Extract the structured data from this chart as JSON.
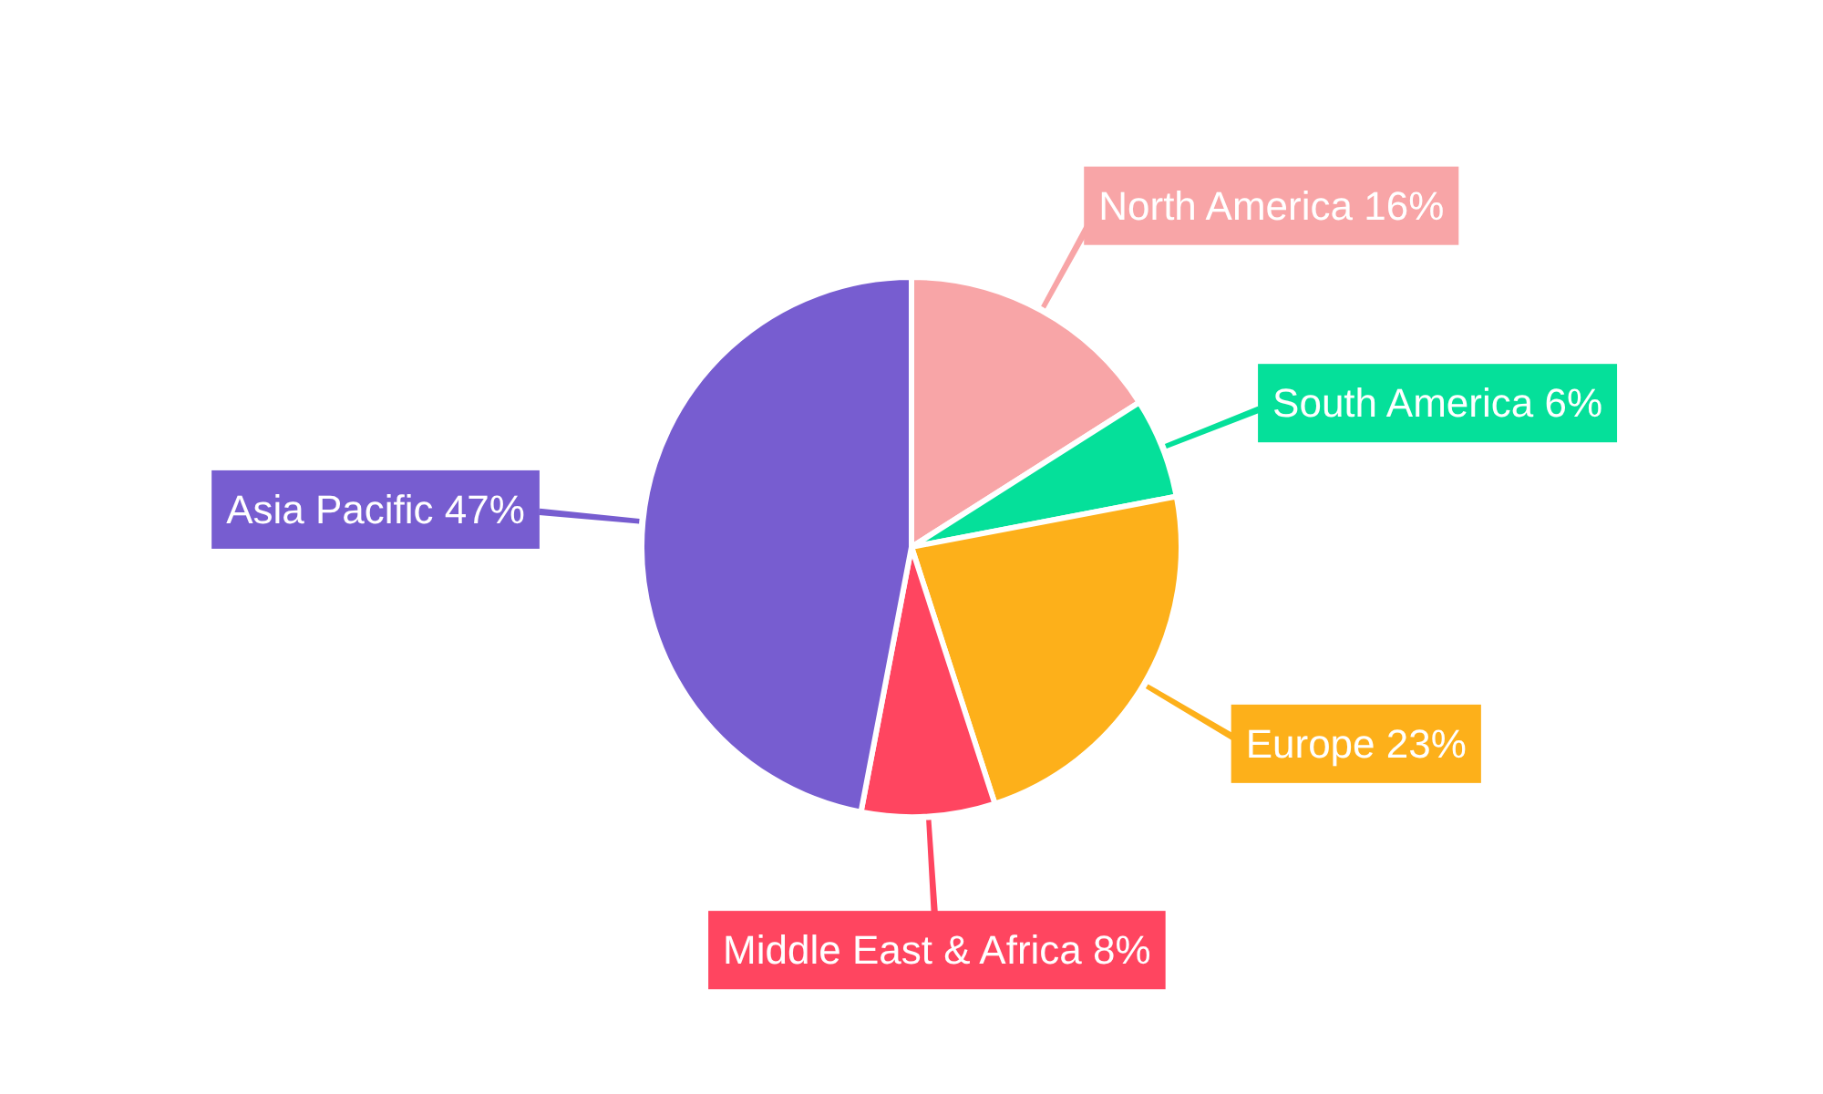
{
  "chart_data": {
    "type": "pie",
    "categories": [
      "North America",
      "South America",
      "Europe",
      "Middle East & Africa",
      "Asia Pacific"
    ],
    "values": [
      16,
      6,
      23,
      8,
      47
    ],
    "colors": [
      "#f8a5a7",
      "#05e09a",
      "#fdb01a",
      "#ff4560",
      "#775dd0"
    ],
    "value_labels": [
      "16%",
      "6%",
      "23%",
      "8%",
      "47%"
    ]
  }
}
